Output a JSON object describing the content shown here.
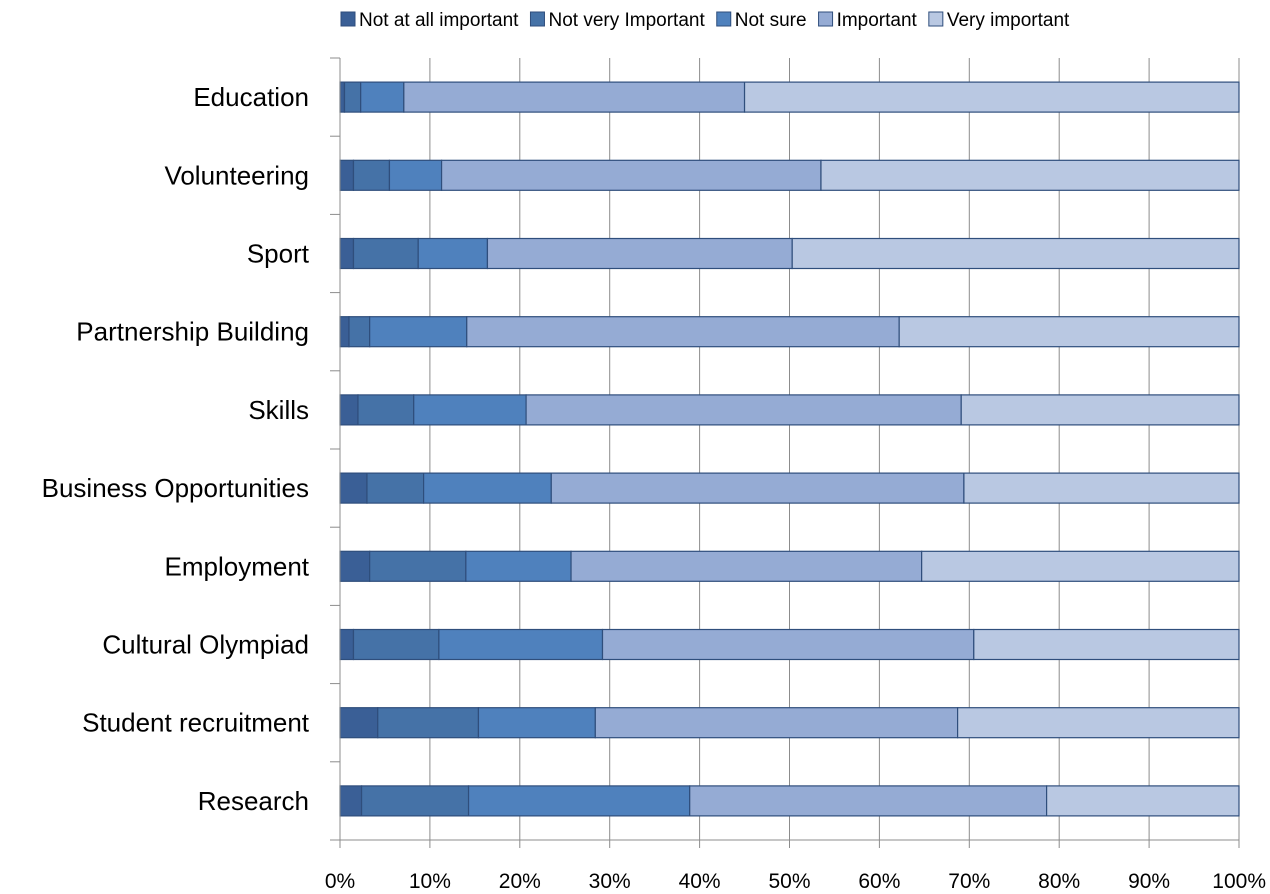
{
  "chart_data": {
    "type": "bar",
    "orientation": "horizontal",
    "stacked": "percent",
    "title": "",
    "xlabel": "",
    "ylabel": "",
    "xlim": [
      0,
      100
    ],
    "x_ticks": [
      "0%",
      "10%",
      "20%",
      "30%",
      "40%",
      "50%",
      "60%",
      "70%",
      "80%",
      "90%",
      "100%"
    ],
    "grid": "vertical",
    "legend_position": "top",
    "categories": [
      "Education",
      "Volunteering",
      "Sport",
      "Partnership Building",
      "Skills",
      "Business Opportunities",
      "Employment",
      "Cultural Olympiad",
      "Student recruitment",
      "Research"
    ],
    "series": [
      {
        "name": "Not at all important",
        "color": "#3A5F96",
        "values": [
          0.5,
          1.5,
          1.5,
          1.0,
          2.0,
          3.0,
          3.3,
          1.5,
          4.2,
          2.4
        ]
      },
      {
        "name": "Not very Important",
        "color": "#4572A7",
        "values": [
          1.8,
          4.0,
          7.2,
          2.3,
          6.2,
          6.3,
          10.7,
          9.5,
          11.2,
          11.9
        ]
      },
      {
        "name": "Not sure",
        "color": "#4F81BD",
        "values": [
          4.8,
          5.8,
          7.7,
          10.8,
          12.5,
          14.2,
          11.7,
          18.2,
          13.0,
          24.6
        ]
      },
      {
        "name": "Important",
        "color": "#95ABD4",
        "values": [
          37.9,
          42.2,
          33.9,
          48.1,
          48.4,
          45.9,
          39.0,
          41.3,
          40.3,
          39.7
        ]
      },
      {
        "name": "Very important",
        "color": "#B9C8E2",
        "values": [
          55.0,
          46.5,
          49.7,
          37.8,
          30.9,
          30.6,
          35.3,
          29.5,
          31.3,
          21.4
        ]
      }
    ]
  }
}
